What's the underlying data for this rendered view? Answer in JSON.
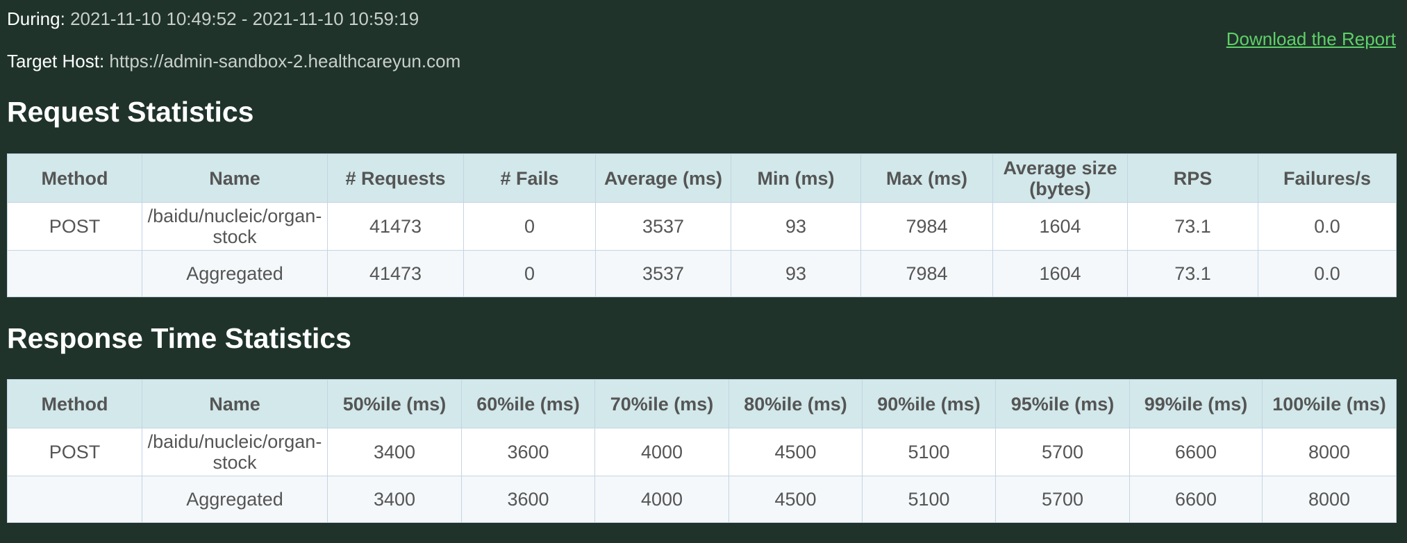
{
  "header": {
    "during_label": "During:",
    "during_value": "2021-11-10 10:49:52 - 2021-11-10 10:59:19",
    "host_label": "Target Host:",
    "host_value": "https://admin-sandbox-2.healthcareyun.com",
    "download_link": "Download the Report"
  },
  "request_stats": {
    "title": "Request Statistics",
    "headers": [
      "Method",
      "Name",
      "# Requests",
      "# Fails",
      "Average (ms)",
      "Min (ms)",
      "Max (ms)",
      "Average size (bytes)",
      "RPS",
      "Failures/s"
    ],
    "rows": [
      [
        "POST",
        "/baidu/nucleic/organ-stock",
        "41473",
        "0",
        "3537",
        "93",
        "7984",
        "1604",
        "73.1",
        "0.0"
      ],
      [
        "",
        "Aggregated",
        "41473",
        "0",
        "3537",
        "93",
        "7984",
        "1604",
        "73.1",
        "0.0"
      ]
    ]
  },
  "response_stats": {
    "title": "Response Time Statistics",
    "headers": [
      "Method",
      "Name",
      "50%ile (ms)",
      "60%ile (ms)",
      "70%ile (ms)",
      "80%ile (ms)",
      "90%ile (ms)",
      "95%ile (ms)",
      "99%ile (ms)",
      "100%ile (ms)"
    ],
    "rows": [
      [
        "POST",
        "/baidu/nucleic/organ-stock",
        "3400",
        "3600",
        "4000",
        "4500",
        "5100",
        "5700",
        "6600",
        "8000"
      ],
      [
        "",
        "Aggregated",
        "3400",
        "3600",
        "4000",
        "4500",
        "5100",
        "5700",
        "6600",
        "8000"
      ]
    ]
  }
}
